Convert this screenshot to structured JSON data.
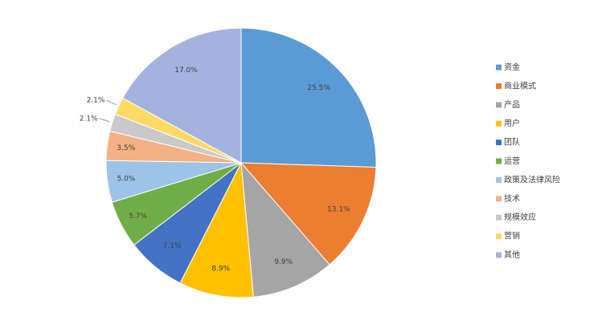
{
  "chart_data": {
    "type": "pie",
    "categories": [
      "资金",
      "商业模式",
      "产品",
      "用户",
      "团队",
      "运营",
      "政策及法律风险",
      "技术",
      "规模效应",
      "营销",
      "其他"
    ],
    "values": [
      25.5,
      13.1,
      9.9,
      8.9,
      7.1,
      5.7,
      5.0,
      3.5,
      2.1,
      2.1,
      17.0
    ],
    "value_labels": [
      "25.5%",
      "13.1%",
      "9.9%",
      "8.9%",
      "7.1%",
      "5.7%",
      "5.0%",
      "3.5%",
      "2.1%",
      "2.1%",
      "17.0%"
    ],
    "colors": [
      "#5b9bd5",
      "#ed7d31",
      "#a5a5a5",
      "#ffc000",
      "#4472c4",
      "#70ad47",
      "#9dc3e6",
      "#f4b183",
      "#c9c9c9",
      "#ffd966",
      "#a4b3de"
    ],
    "legend": "right"
  }
}
